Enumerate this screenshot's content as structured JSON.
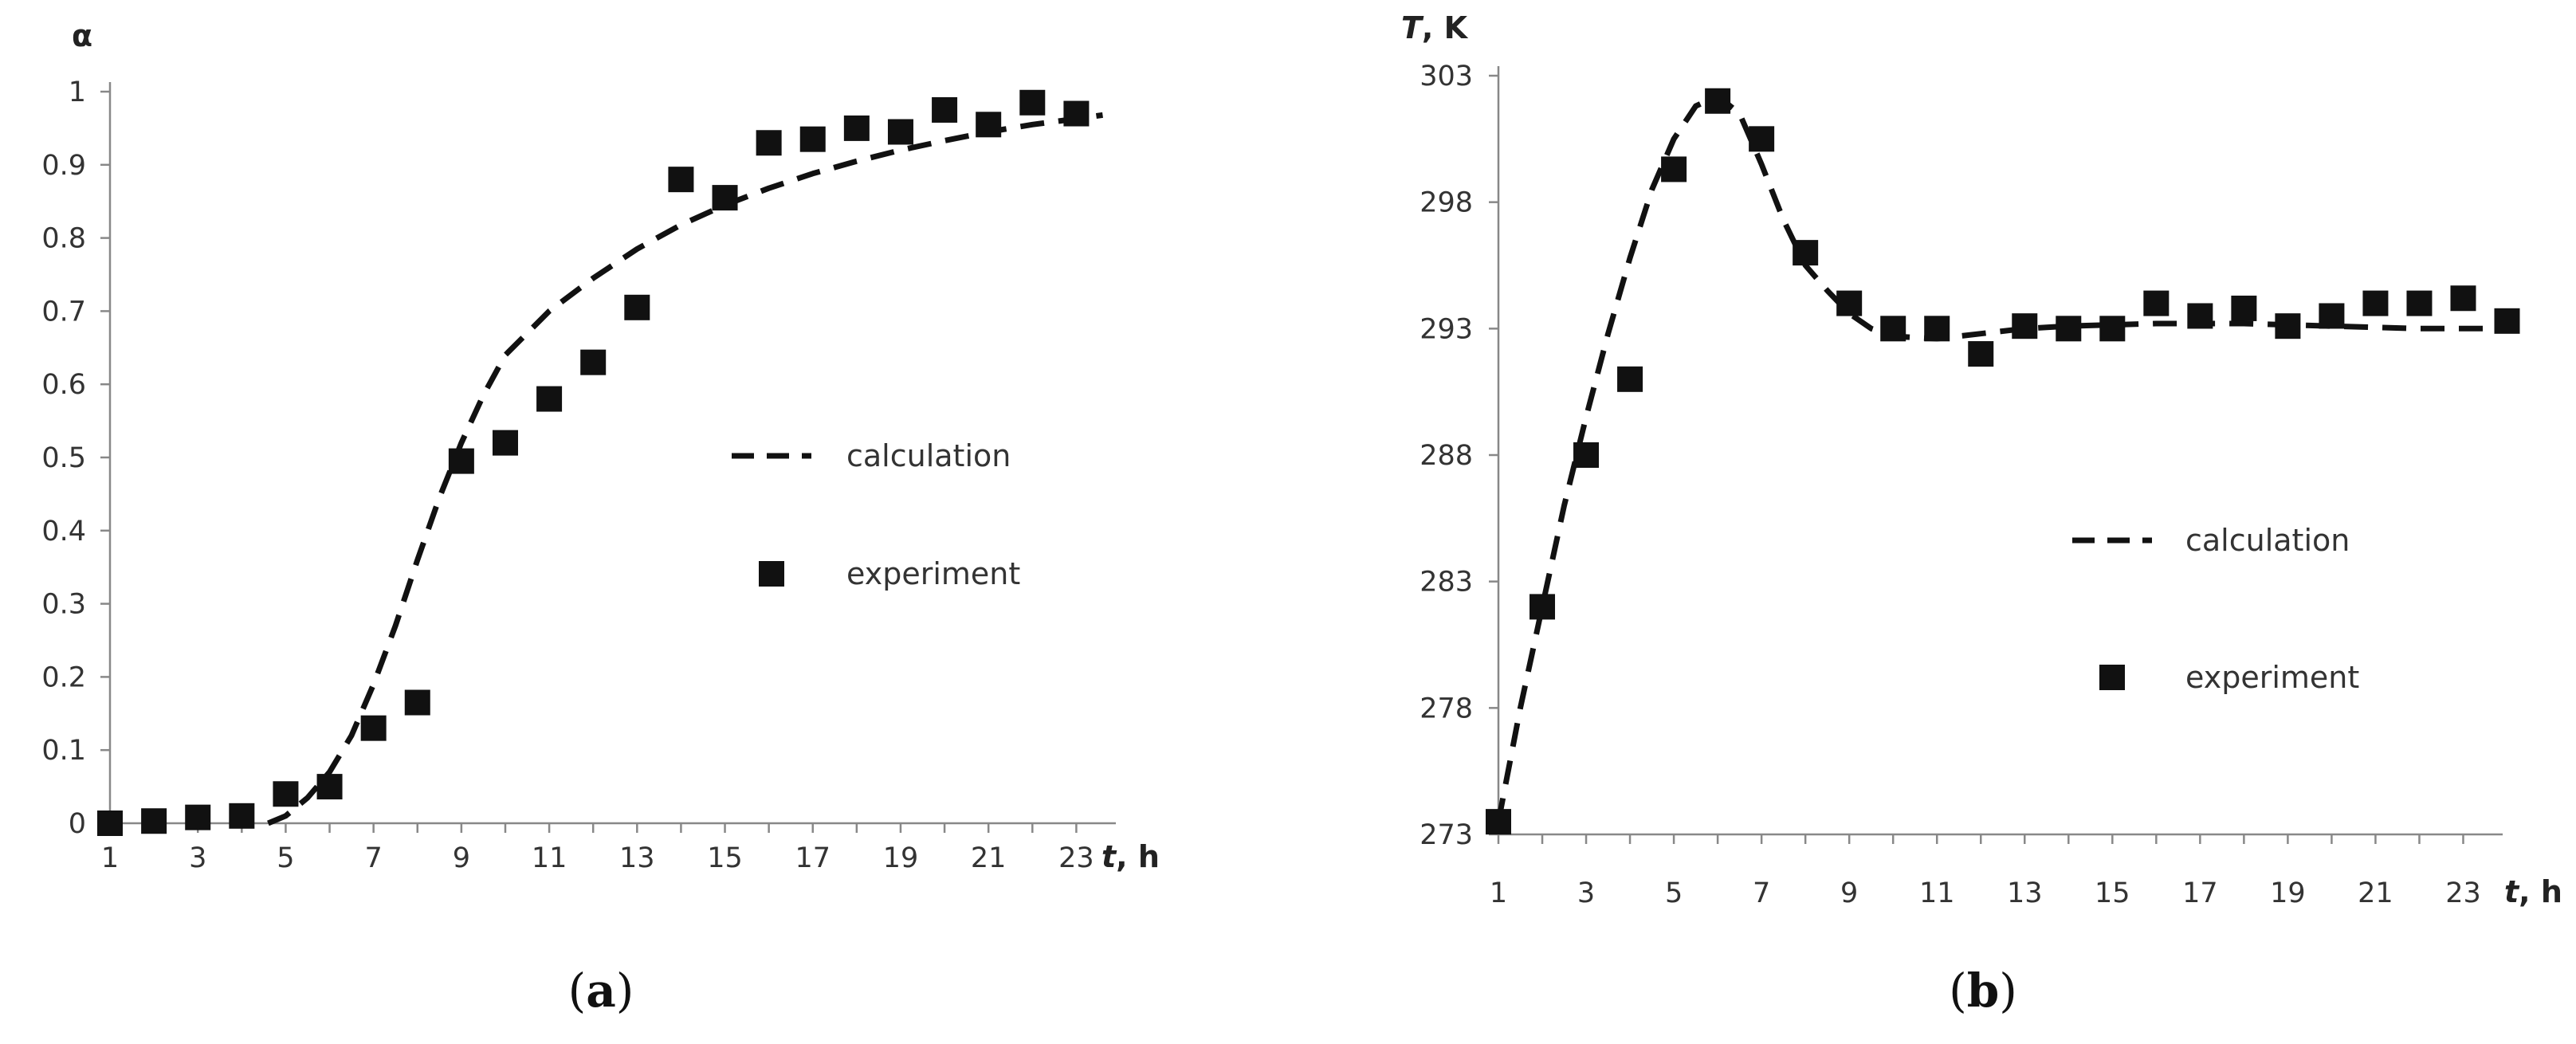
{
  "chart_data": [
    {
      "type": "line",
      "caption_letter": "a",
      "ylabel": "α",
      "xlabel_italic": "t",
      "xlabel_rest": ", h",
      "ylim": [
        0,
        1
      ],
      "xlim": [
        1,
        23.9
      ],
      "yticks": [
        "0",
        "0.1",
        "0.2",
        "0.3",
        "0.4",
        "0.5",
        "0.6",
        "0.7",
        "0.8",
        "0.9",
        "1"
      ],
      "ytick_values": [
        0,
        0.1,
        0.2,
        0.3,
        0.4,
        0.5,
        0.6,
        0.7,
        0.8,
        0.9,
        1
      ],
      "xticks": [
        "1",
        "3",
        "5",
        "7",
        "9",
        "11",
        "13",
        "15",
        "17",
        "19",
        "21",
        "23"
      ],
      "xtick_values": [
        1,
        3,
        5,
        7,
        9,
        11,
        13,
        15,
        17,
        19,
        21,
        23
      ],
      "legend": {
        "position": "center-right",
        "line_label": "calculation",
        "marker_label": "experiment"
      },
      "series": [
        {
          "name": "calculation",
          "style": "dashed",
          "x": [
            4.6,
            5,
            5.5,
            6,
            6.5,
            7,
            7.5,
            8,
            8.5,
            9,
            9.5,
            10,
            11,
            12,
            13,
            14,
            15,
            16,
            17,
            18,
            19,
            20,
            21,
            22,
            23,
            23.6
          ],
          "y": [
            0,
            0.01,
            0.035,
            0.07,
            0.12,
            0.19,
            0.27,
            0.36,
            0.445,
            0.52,
            0.585,
            0.64,
            0.7,
            0.745,
            0.785,
            0.818,
            0.845,
            0.868,
            0.888,
            0.905,
            0.92,
            0.933,
            0.945,
            0.955,
            0.963,
            0.968
          ]
        },
        {
          "name": "experiment",
          "style": "markers",
          "x": [
            1,
            2,
            3,
            4,
            5,
            6,
            7,
            8,
            9,
            10,
            11,
            12,
            13,
            14,
            15,
            16,
            17,
            18,
            19,
            20,
            21,
            22,
            23
          ],
          "y": [
            0,
            0.003,
            0.008,
            0.01,
            0.04,
            0.05,
            0.13,
            0.165,
            0.495,
            0.52,
            0.58,
            0.63,
            0.705,
            0.88,
            0.855,
            0.93,
            0.935,
            0.95,
            0.945,
            0.975,
            0.955,
            0.985,
            0.97
          ]
        }
      ]
    },
    {
      "type": "line",
      "caption_letter": "b",
      "ylabel_italic": "T",
      "ylabel_rest": ", K",
      "xlabel_italic": "t",
      "xlabel_rest": ", h",
      "ylim": [
        273,
        303
      ],
      "xlim": [
        1,
        23.9
      ],
      "yticks": [
        "273",
        "278",
        "283",
        "288",
        "293",
        "298",
        "303"
      ],
      "ytick_values": [
        273,
        278,
        283,
        288,
        293,
        298,
        303
      ],
      "xticks": [
        "1",
        "3",
        "5",
        "7",
        "9",
        "11",
        "13",
        "15",
        "17",
        "19",
        "21",
        "23"
      ],
      "xtick_values": [
        1,
        3,
        5,
        7,
        9,
        11,
        13,
        15,
        17,
        19,
        21,
        23
      ],
      "legend": {
        "position": "center-right",
        "line_label": "calculation",
        "marker_label": "experiment"
      },
      "series": [
        {
          "name": "calculation",
          "style": "dashed",
          "x": [
            1,
            1.5,
            2,
            2.5,
            3,
            3.5,
            4,
            4.5,
            5,
            5.5,
            6,
            6.5,
            7,
            7.5,
            8,
            8.5,
            9,
            9.5,
            10,
            11,
            12,
            13,
            14,
            16,
            18,
            20,
            22,
            23.6
          ],
          "y": [
            273.5,
            278,
            282,
            286,
            289.5,
            292.8,
            295.8,
            298.5,
            300.5,
            301.8,
            302.2,
            301.5,
            299.5,
            297.3,
            295.5,
            294.5,
            293.6,
            293.0,
            292.7,
            292.6,
            292.8,
            293.0,
            293.1,
            293.2,
            293.2,
            293.1,
            293.0,
            293.0
          ]
        },
        {
          "name": "experiment",
          "style": "markers",
          "x": [
            1,
            2,
            3,
            4,
            5,
            6,
            7,
            8,
            9,
            10,
            11,
            12,
            13,
            14,
            15,
            16,
            17,
            18,
            19,
            20,
            21,
            22,
            23,
            24
          ],
          "y": [
            273.5,
            282,
            288,
            291,
            299.3,
            302,
            300.5,
            296,
            294,
            293,
            293,
            292,
            293.1,
            293,
            293,
            294,
            293.5,
            293.8,
            293.1,
            293.5,
            294,
            294,
            294.2,
            293.3
          ]
        }
      ]
    }
  ]
}
